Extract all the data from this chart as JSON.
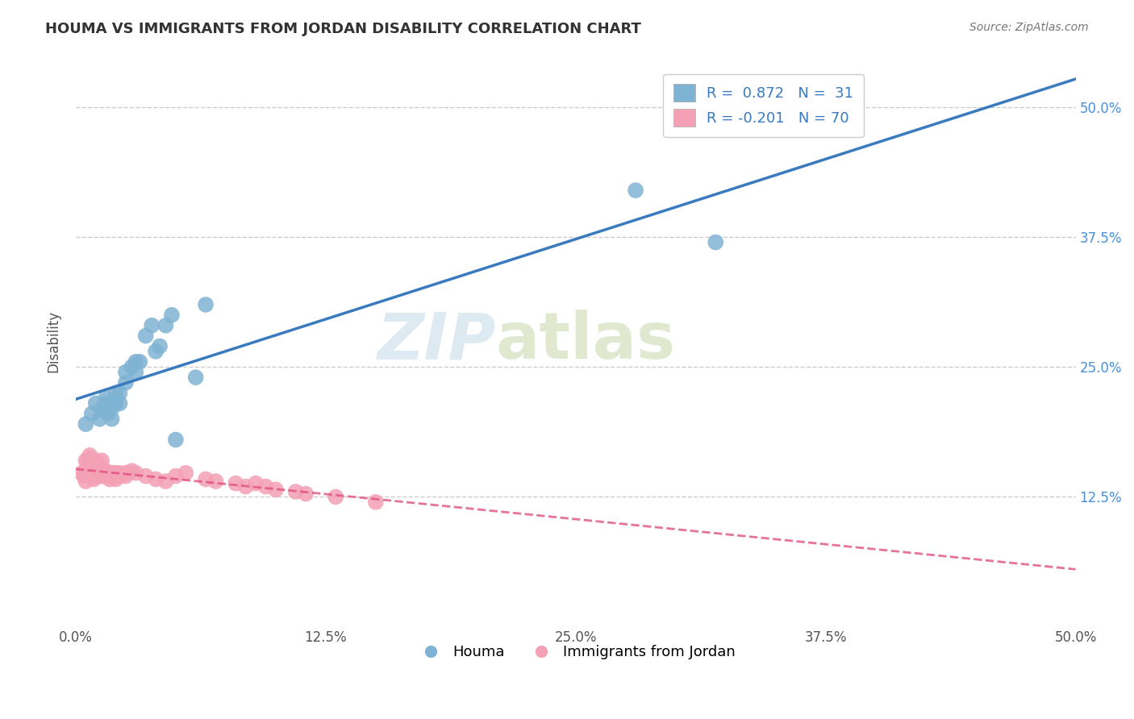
{
  "title": "HOUMA VS IMMIGRANTS FROM JORDAN DISABILITY CORRELATION CHART",
  "source": "Source: ZipAtlas.com",
  "ylabel": "Disability",
  "xlim": [
    0.0,
    0.5
  ],
  "ylim": [
    0.0,
    0.55
  ],
  "xtick_labels": [
    "0.0%",
    "12.5%",
    "25.0%",
    "37.5%",
    "50.0%"
  ],
  "xtick_vals": [
    0.0,
    0.125,
    0.25,
    0.375,
    0.5
  ],
  "ytick_labels_right": [
    "50.0%",
    "37.5%",
    "25.0%",
    "12.5%"
  ],
  "ytick_vals_right": [
    0.5,
    0.375,
    0.25,
    0.125
  ],
  "legend_label_blue": "R =  0.872   N =  31",
  "legend_label_pink": "R = -0.201   N = 70",
  "legend_bottom_blue": "Houma",
  "legend_bottom_pink": "Immigrants from Jordan",
  "blue_color": "#7fb3d3",
  "blue_line_color": "#3a7abf",
  "pink_color": "#f4a0b5",
  "pink_line_color": "#e05080",
  "background_color": "#ffffff",
  "grid_color": "#cccccc",
  "houma_x": [
    0.005,
    0.008,
    0.01,
    0.012,
    0.013,
    0.015,
    0.015,
    0.016,
    0.018,
    0.018,
    0.02,
    0.02,
    0.022,
    0.022,
    0.025,
    0.025,
    0.028,
    0.03,
    0.03,
    0.032,
    0.035,
    0.038,
    0.04,
    0.042,
    0.045,
    0.048,
    0.05,
    0.06,
    0.065,
    0.28,
    0.32
  ],
  "houma_y": [
    0.195,
    0.205,
    0.215,
    0.2,
    0.21,
    0.215,
    0.22,
    0.205,
    0.2,
    0.21,
    0.215,
    0.225,
    0.215,
    0.225,
    0.245,
    0.235,
    0.25,
    0.245,
    0.255,
    0.255,
    0.28,
    0.29,
    0.265,
    0.27,
    0.29,
    0.3,
    0.18,
    0.24,
    0.31,
    0.42,
    0.37
  ],
  "jordan_x": [
    0.003,
    0.004,
    0.005,
    0.005,
    0.006,
    0.006,
    0.007,
    0.007,
    0.007,
    0.008,
    0.008,
    0.008,
    0.009,
    0.009,
    0.01,
    0.01,
    0.01,
    0.01,
    0.011,
    0.011,
    0.012,
    0.012,
    0.013,
    0.013,
    0.014,
    0.014,
    0.015,
    0.015,
    0.016,
    0.016,
    0.017,
    0.017,
    0.018,
    0.018,
    0.019,
    0.019,
    0.02,
    0.02,
    0.022,
    0.022,
    0.025,
    0.025,
    0.028,
    0.03,
    0.035,
    0.04,
    0.045,
    0.05,
    0.055,
    0.065,
    0.07,
    0.08,
    0.085,
    0.09,
    0.095,
    0.1,
    0.11,
    0.115,
    0.13,
    0.15,
    0.005,
    0.006,
    0.007,
    0.007,
    0.008,
    0.009,
    0.01,
    0.011,
    0.012,
    0.013
  ],
  "jordan_y": [
    0.148,
    0.145,
    0.15,
    0.14,
    0.148,
    0.152,
    0.145,
    0.148,
    0.15,
    0.145,
    0.148,
    0.15,
    0.142,
    0.148,
    0.145,
    0.148,
    0.15,
    0.145,
    0.148,
    0.145,
    0.15,
    0.148,
    0.145,
    0.148,
    0.15,
    0.145,
    0.148,
    0.15,
    0.145,
    0.148,
    0.142,
    0.145,
    0.148,
    0.145,
    0.148,
    0.145,
    0.142,
    0.148,
    0.145,
    0.148,
    0.145,
    0.148,
    0.15,
    0.148,
    0.145,
    0.142,
    0.14,
    0.145,
    0.148,
    0.142,
    0.14,
    0.138,
    0.135,
    0.138,
    0.135,
    0.132,
    0.13,
    0.128,
    0.125,
    0.12,
    0.16,
    0.158,
    0.165,
    0.162,
    0.16,
    0.155,
    0.16,
    0.158,
    0.155,
    0.16
  ]
}
